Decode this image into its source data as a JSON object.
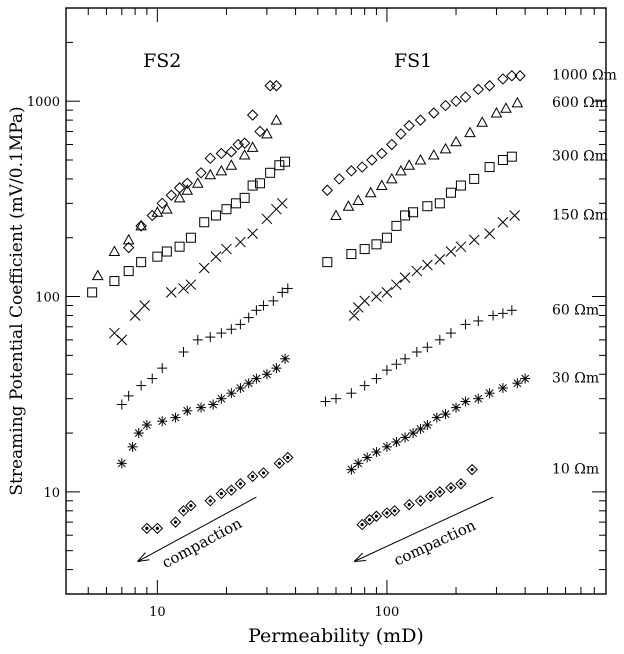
{
  "chart_data": {
    "type": "scatter",
    "title": "",
    "xlabel": "Permeability (mD)",
    "ylabel": "Streaming Potential Coefficient (mV/0.1MPa)",
    "x_scale": "log",
    "y_scale": "log",
    "xlim": [
      4,
      900
    ],
    "ylim": [
      3,
      3000
    ],
    "x_ticks": [
      {
        "value": 10,
        "label": "10"
      },
      {
        "value": 100,
        "label": "100"
      }
    ],
    "y_ticks": [
      {
        "value": 10,
        "label": "10"
      },
      {
        "value": 100,
        "label": "100"
      },
      {
        "value": 1000,
        "label": "1000"
      }
    ],
    "grid": false,
    "legend": "none",
    "group_labels": [
      {
        "text": "FS2",
        "x": 10.5,
        "y": 1500
      },
      {
        "text": "FS1",
        "x": 130,
        "y": 1500
      }
    ],
    "series": [
      {
        "label": "1000 Ωm",
        "marker": "diamond",
        "points": [
          [
            7.5,
            178
          ],
          [
            8.5,
            230
          ],
          [
            9.5,
            260
          ],
          [
            10.5,
            300
          ],
          [
            11.5,
            330
          ],
          [
            12.5,
            360
          ],
          [
            13.5,
            380
          ],
          [
            15.5,
            430
          ],
          [
            17,
            510
          ],
          [
            19,
            540
          ],
          [
            21,
            550
          ],
          [
            22.5,
            600
          ],
          [
            24,
            610
          ],
          [
            26,
            850
          ],
          [
            28,
            700
          ],
          [
            31,
            1200
          ],
          [
            33,
            1200
          ],
          [
            55,
            350
          ],
          [
            62,
            400
          ],
          [
            70,
            440
          ],
          [
            78,
            460
          ],
          [
            86,
            500
          ],
          [
            95,
            540
          ],
          [
            105,
            600
          ],
          [
            115,
            680
          ],
          [
            125,
            750
          ],
          [
            140,
            800
          ],
          [
            160,
            870
          ],
          [
            180,
            950
          ],
          [
            200,
            1000
          ],
          [
            220,
            1050
          ],
          [
            250,
            1150
          ],
          [
            280,
            1200
          ],
          [
            320,
            1300
          ],
          [
            350,
            1350
          ],
          [
            380,
            1350
          ]
        ]
      },
      {
        "label": "600 Ωm",
        "marker": "triangle",
        "points": [
          [
            5.5,
            128
          ],
          [
            6.5,
            170
          ],
          [
            7.5,
            195
          ],
          [
            8.5,
            230
          ],
          [
            10,
            270
          ],
          [
            11,
            280
          ],
          [
            12.5,
            320
          ],
          [
            13.5,
            350
          ],
          [
            15,
            380
          ],
          [
            17,
            420
          ],
          [
            19,
            440
          ],
          [
            21,
            470
          ],
          [
            24,
            530
          ],
          [
            26,
            580
          ],
          [
            30,
            680
          ],
          [
            33,
            800
          ],
          [
            60,
            260
          ],
          [
            68,
            290
          ],
          [
            75,
            310
          ],
          [
            85,
            340
          ],
          [
            95,
            370
          ],
          [
            105,
            400
          ],
          [
            115,
            440
          ],
          [
            125,
            470
          ],
          [
            140,
            500
          ],
          [
            160,
            530
          ],
          [
            180,
            570
          ],
          [
            200,
            620
          ],
          [
            230,
            690
          ],
          [
            260,
            780
          ],
          [
            300,
            870
          ],
          [
            330,
            920
          ],
          [
            370,
            980
          ]
        ]
      },
      {
        "label": "300 Ωm",
        "marker": "square",
        "points": [
          [
            5.2,
            105
          ],
          [
            6.5,
            120
          ],
          [
            7.5,
            135
          ],
          [
            8.5,
            150
          ],
          [
            10,
            160
          ],
          [
            11,
            170
          ],
          [
            12.5,
            180
          ],
          [
            14,
            200
          ],
          [
            16,
            240
          ],
          [
            18,
            260
          ],
          [
            20,
            280
          ],
          [
            22,
            300
          ],
          [
            24,
            320
          ],
          [
            26,
            370
          ],
          [
            28,
            380
          ],
          [
            31,
            430
          ],
          [
            34,
            470
          ],
          [
            36,
            490
          ],
          [
            55,
            150
          ],
          [
            70,
            165
          ],
          [
            80,
            175
          ],
          [
            90,
            185
          ],
          [
            100,
            200
          ],
          [
            110,
            230
          ],
          [
            120,
            260
          ],
          [
            130,
            270
          ],
          [
            150,
            290
          ],
          [
            170,
            300
          ],
          [
            190,
            340
          ],
          [
            210,
            370
          ],
          [
            240,
            400
          ],
          [
            280,
            460
          ],
          [
            320,
            500
          ],
          [
            350,
            520
          ]
        ]
      },
      {
        "label": "150 Ωm",
        "marker": "x",
        "points": [
          [
            6.5,
            65
          ],
          [
            7,
            60
          ],
          [
            8,
            80
          ],
          [
            8.8,
            90
          ],
          [
            11.5,
            105
          ],
          [
            13,
            110
          ],
          [
            14,
            115
          ],
          [
            16,
            140
          ],
          [
            18,
            160
          ],
          [
            20,
            175
          ],
          [
            23,
            190
          ],
          [
            26,
            210
          ],
          [
            30,
            250
          ],
          [
            33,
            280
          ],
          [
            35,
            300
          ],
          [
            72,
            80
          ],
          [
            75,
            88
          ],
          [
            80,
            95
          ],
          [
            90,
            100
          ],
          [
            100,
            105
          ],
          [
            110,
            115
          ],
          [
            120,
            125
          ],
          [
            135,
            135
          ],
          [
            150,
            145
          ],
          [
            170,
            155
          ],
          [
            190,
            170
          ],
          [
            210,
            180
          ],
          [
            240,
            195
          ],
          [
            280,
            210
          ],
          [
            320,
            240
          ],
          [
            360,
            260
          ]
        ]
      },
      {
        "label": "60 Ωm",
        "marker": "plus",
        "points": [
          [
            7,
            28
          ],
          [
            7.5,
            31
          ],
          [
            8.5,
            35
          ],
          [
            9.5,
            38
          ],
          [
            10.5,
            43
          ],
          [
            13,
            52
          ],
          [
            15,
            60
          ],
          [
            17,
            62
          ],
          [
            19,
            65
          ],
          [
            21,
            68
          ],
          [
            23,
            72
          ],
          [
            25,
            78
          ],
          [
            27,
            85
          ],
          [
            29,
            90
          ],
          [
            32,
            95
          ],
          [
            35,
            105
          ],
          [
            37,
            110
          ],
          [
            54,
            29
          ],
          [
            60,
            30
          ],
          [
            70,
            32
          ],
          [
            80,
            35
          ],
          [
            90,
            38
          ],
          [
            100,
            42
          ],
          [
            110,
            45
          ],
          [
            120,
            48
          ],
          [
            135,
            52
          ],
          [
            150,
            55
          ],
          [
            170,
            60
          ],
          [
            190,
            65
          ],
          [
            220,
            72
          ],
          [
            250,
            75
          ],
          [
            290,
            80
          ],
          [
            320,
            82
          ],
          [
            350,
            85
          ]
        ]
      },
      {
        "label": "30 Ωm",
        "marker": "star",
        "points": [
          [
            7,
            14
          ],
          [
            7.8,
            17
          ],
          [
            8.3,
            20
          ],
          [
            9,
            22
          ],
          [
            10.5,
            23
          ],
          [
            12,
            24
          ],
          [
            13.5,
            26
          ],
          [
            15.5,
            27
          ],
          [
            17.5,
            28
          ],
          [
            19,
            30
          ],
          [
            21,
            32
          ],
          [
            23,
            34
          ],
          [
            25,
            36
          ],
          [
            27,
            38
          ],
          [
            30,
            40
          ],
          [
            33,
            43
          ],
          [
            36,
            48
          ],
          [
            70,
            13
          ],
          [
            75,
            14
          ],
          [
            82,
            15
          ],
          [
            90,
            16
          ],
          [
            100,
            17
          ],
          [
            110,
            18
          ],
          [
            120,
            19
          ],
          [
            130,
            20
          ],
          [
            140,
            21
          ],
          [
            150,
            22
          ],
          [
            165,
            24
          ],
          [
            180,
            25
          ],
          [
            200,
            27
          ],
          [
            220,
            29
          ],
          [
            250,
            30
          ],
          [
            280,
            32
          ],
          [
            320,
            34
          ],
          [
            370,
            36
          ],
          [
            400,
            38
          ]
        ]
      },
      {
        "label": "10 Ωm",
        "marker": "circled-diamond",
        "points": [
          [
            9,
            6.5
          ],
          [
            10,
            6.5
          ],
          [
            12,
            7
          ],
          [
            13,
            8
          ],
          [
            14,
            8.5
          ],
          [
            17,
            9
          ],
          [
            19,
            9.8
          ],
          [
            21,
            10.2
          ],
          [
            23,
            11
          ],
          [
            26,
            12
          ],
          [
            29,
            12.5
          ],
          [
            34,
            14
          ],
          [
            37,
            15
          ],
          [
            78,
            6.8
          ],
          [
            84,
            7.2
          ],
          [
            90,
            7.5
          ],
          [
            100,
            7.8
          ],
          [
            108,
            8
          ],
          [
            125,
            8.6
          ],
          [
            140,
            9
          ],
          [
            155,
            9.5
          ],
          [
            170,
            10
          ],
          [
            190,
            10.5
          ],
          [
            210,
            11
          ],
          [
            235,
            13
          ]
        ]
      }
    ],
    "annotations": [
      {
        "text": "compaction",
        "arrow_from": [
          27,
          9.4
        ],
        "arrow_to": [
          8.2,
          4.4
        ],
        "text_at": [
          16,
          5.2
        ]
      },
      {
        "text": "compaction",
        "arrow_from": [
          290,
          9.4
        ],
        "arrow_to": [
          72,
          4.4
        ],
        "text_at": [
          165,
          5.2
        ]
      }
    ]
  }
}
